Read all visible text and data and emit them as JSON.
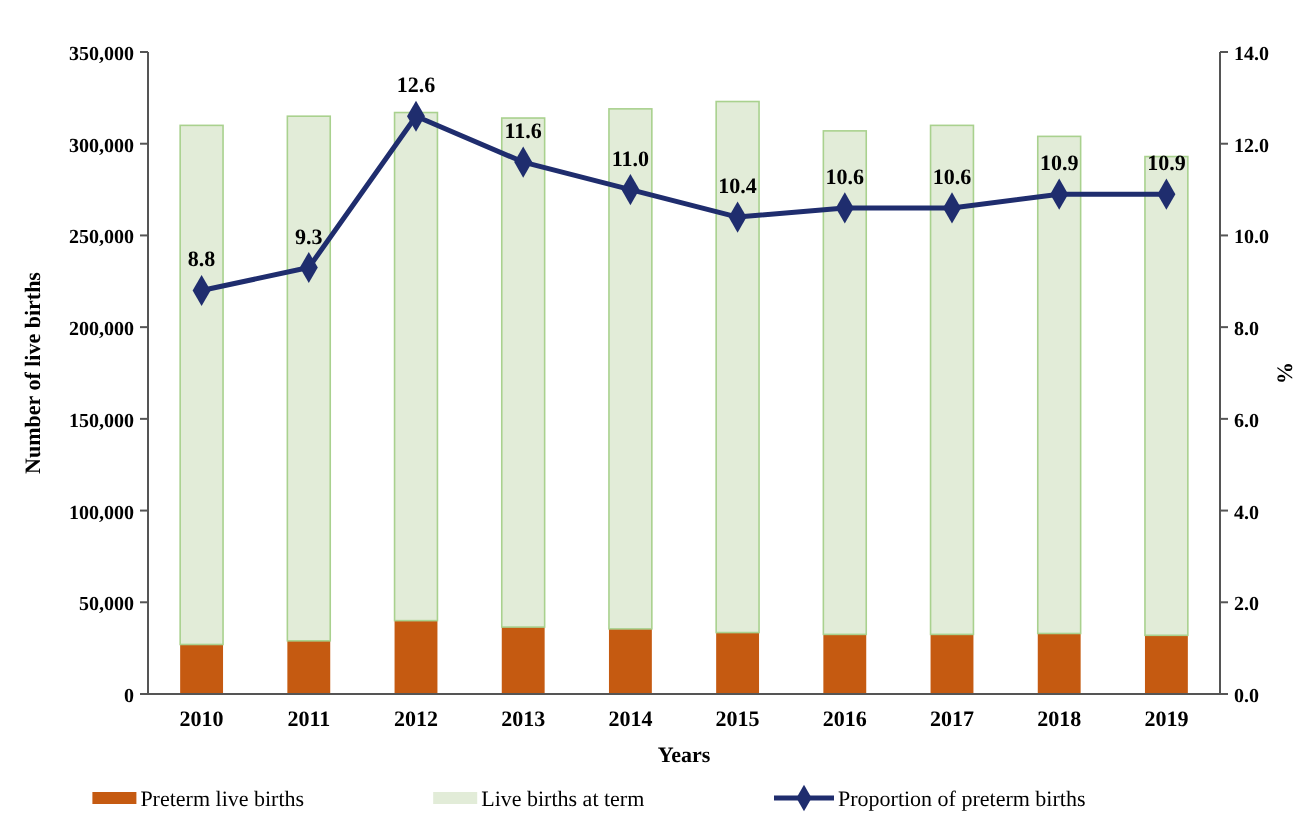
{
  "chart_data": {
    "type": "bar",
    "stacked": true,
    "xlabel": "Years",
    "ylabel": "Number of live births",
    "y2label": "%",
    "categories": [
      "2010",
      "2011",
      "2012",
      "2013",
      "2014",
      "2015",
      "2016",
      "2017",
      "2018",
      "2019"
    ],
    "series": [
      {
        "name": "Preterm live births",
        "color": "#c55a11",
        "values": [
          27000,
          29000,
          40000,
          36500,
          35500,
          33500,
          32500,
          32500,
          33000,
          32000
        ]
      },
      {
        "name": "Live births at term",
        "color": "#e2ecd8",
        "values": [
          283000,
          286000,
          277000,
          277500,
          283500,
          289500,
          274500,
          277500,
          271000,
          261000
        ]
      },
      {
        "name": "Proportion of preterm births",
        "type": "line",
        "axis": "y2",
        "color": "#1f2d6e",
        "marker": "diamond",
        "data_labels": true,
        "values": [
          8.8,
          9.3,
          12.6,
          11.6,
          11.0,
          10.4,
          10.6,
          10.6,
          10.9,
          10.9
        ],
        "value_labels": [
          "8.8",
          "9.3",
          "12.6",
          "11.6",
          "11.0",
          "10.4",
          "10.6",
          "10.6",
          "10.9",
          "10.9"
        ]
      }
    ],
    "ylim": [
      0,
      350000
    ],
    "yticks": [
      {
        "value": 0,
        "label": "0"
      },
      {
        "value": 50000,
        "label": "50,000"
      },
      {
        "value": 100000,
        "label": "100,000"
      },
      {
        "value": 150000,
        "label": "150,000"
      },
      {
        "value": 200000,
        "label": "200,000"
      },
      {
        "value": 250000,
        "label": "250,000"
      },
      {
        "value": 300000,
        "label": "300,000"
      },
      {
        "value": 350000,
        "label": "350,000"
      }
    ],
    "y2lim": [
      0,
      14
    ],
    "y2ticks": [
      {
        "value": 0,
        "label": "0.0"
      },
      {
        "value": 2,
        "label": "2.0"
      },
      {
        "value": 4,
        "label": "4.0"
      },
      {
        "value": 6,
        "label": "6.0"
      },
      {
        "value": 8,
        "label": "8.0"
      },
      {
        "value": 10,
        "label": "10.0"
      },
      {
        "value": 12,
        "label": "12.0"
      },
      {
        "value": 14,
        "label": "14.0"
      }
    ],
    "grid": false,
    "legend": "bottom"
  }
}
